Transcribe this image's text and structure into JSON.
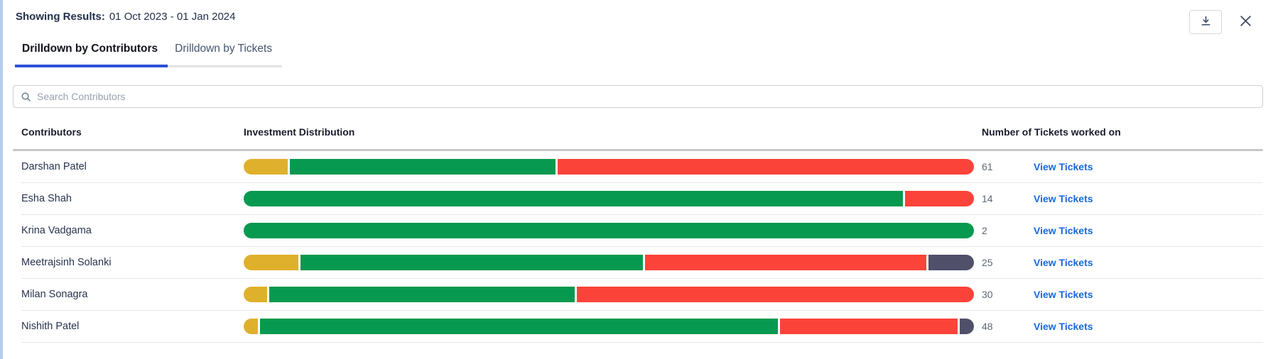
{
  "header": {
    "label": "Showing Results:",
    "date_range": "01 Oct 2023 - 01 Jan 2024",
    "actions": [
      {
        "icon": "download-icon"
      },
      {
        "icon": "close-icon"
      }
    ]
  },
  "tabs": [
    {
      "label": "Drilldown by Contributors",
      "active": true
    },
    {
      "label": "Drilldown by Tickets",
      "active": false
    }
  ],
  "search": {
    "icon": "search-icon",
    "placeholder": "Search Contributors",
    "value": ""
  },
  "table": {
    "columns": {
      "contributors": "Contributors",
      "distribution": "Investment Distribution",
      "tickets": "Number of Tickets worked on"
    },
    "view_tickets_label": "View Tickets",
    "rows": [
      {
        "name": "Darshan Patel",
        "tickets": "61",
        "segments": [
          {
            "color": "yellow",
            "pct": 6.1
          },
          {
            "color": "green",
            "pct": 36.6
          },
          {
            "color": "red",
            "pct": 57.3
          }
        ]
      },
      {
        "name": "Esha Shah",
        "tickets": "14",
        "segments": [
          {
            "color": "green",
            "pct": 90.5
          },
          {
            "color": "red",
            "pct": 9.5
          }
        ]
      },
      {
        "name": "Krina Vadgama",
        "tickets": "2",
        "segments": [
          {
            "color": "green",
            "pct": 100
          }
        ]
      },
      {
        "name": "Meetrajsinh Solanki",
        "tickets": "25",
        "segments": [
          {
            "color": "yellow",
            "pct": 7.5
          },
          {
            "color": "green",
            "pct": 46.7
          },
          {
            "color": "red",
            "pct": 38.4
          },
          {
            "color": "slate",
            "pct": 6.2
          }
        ]
      },
      {
        "name": "Milan Sonagra",
        "tickets": "30",
        "segments": [
          {
            "color": "yellow",
            "pct": 3.2
          },
          {
            "color": "green",
            "pct": 41.8
          },
          {
            "color": "red",
            "pct": 54.4
          }
        ]
      },
      {
        "name": "Nishith Patel",
        "tickets": "48",
        "segments": [
          {
            "color": "yellow",
            "pct": 1.9
          },
          {
            "color": "green",
            "pct": 70.9
          },
          {
            "color": "red",
            "pct": 24.4
          },
          {
            "color": "slate",
            "pct": 1.9
          }
        ]
      }
    ]
  },
  "colors": {
    "yellow": "#dfb02c",
    "green": "#089950",
    "red": "#fb433a",
    "slate": "#50506b",
    "link": "#1668dc",
    "underline": "#2c50d8"
  }
}
